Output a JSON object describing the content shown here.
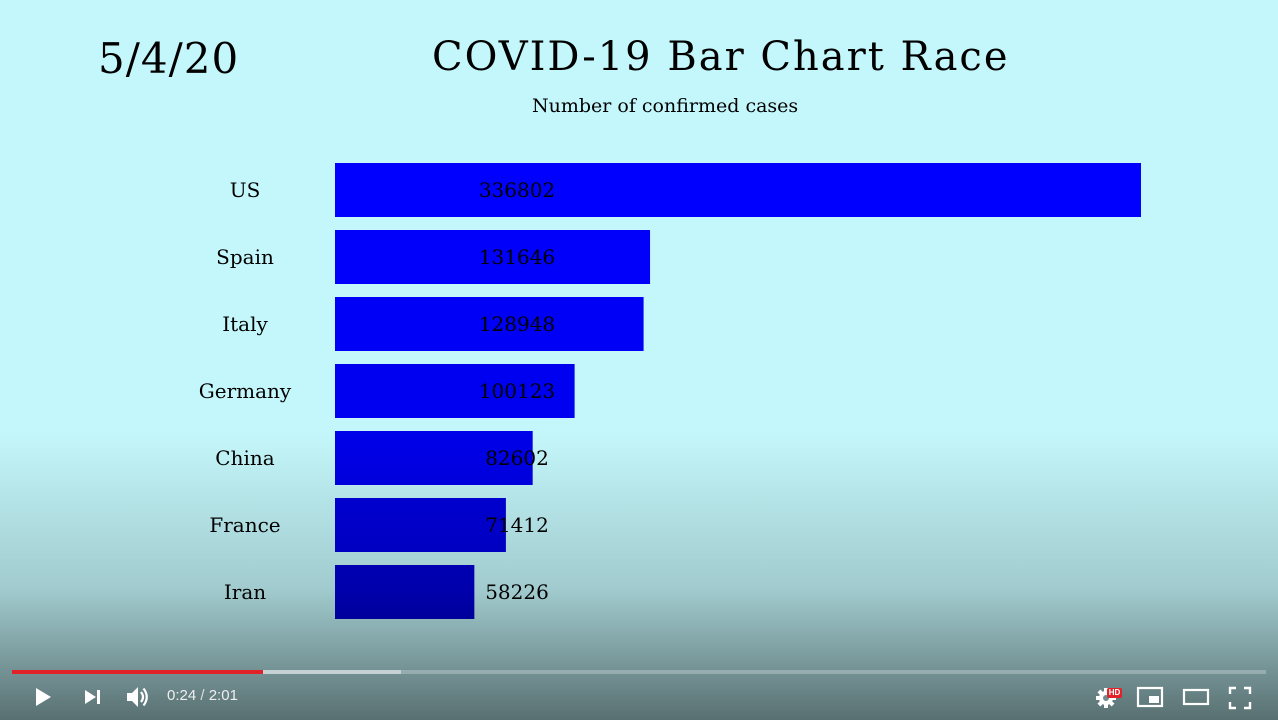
{
  "header": {
    "date": "5/4/20",
    "title": "COVID-19 Bar Chart Race",
    "subtitle": "Number of confirmed cases"
  },
  "chart_data": {
    "type": "bar",
    "orientation": "horizontal",
    "title": "COVID-19 Bar Chart Race",
    "subtitle": "Number of confirmed cases",
    "date": "5/4/20",
    "categories": [
      "US",
      "Spain",
      "Italy",
      "Germany",
      "China",
      "France",
      "Iran"
    ],
    "values": [
      336802,
      131646,
      128948,
      100123,
      82602,
      71412,
      58226
    ],
    "value_labels": [
      "336802",
      "131646",
      "128948",
      "100123",
      "82602",
      "71412",
      "58226"
    ],
    "xlim": [
      0,
      336802
    ],
    "grid": false,
    "legend": "none",
    "bar_colors": [
      "#0000ff",
      "#0000fb",
      "#0000f6",
      "#0000f1",
      "#0000ea",
      "#0000e0",
      "#0000d2"
    ]
  },
  "player": {
    "current_time": "0:24",
    "separator": " / ",
    "duration": "2:01",
    "played_fraction": 0.2,
    "buffered_fraction": 0.31,
    "progress_color": "#e0232a",
    "hd_badge": "HD",
    "icons": [
      "play-icon",
      "next-icon",
      "volume-icon",
      "settings-icon",
      "miniplayer-icon",
      "theater-mode-icon",
      "fullscreen-icon"
    ]
  }
}
